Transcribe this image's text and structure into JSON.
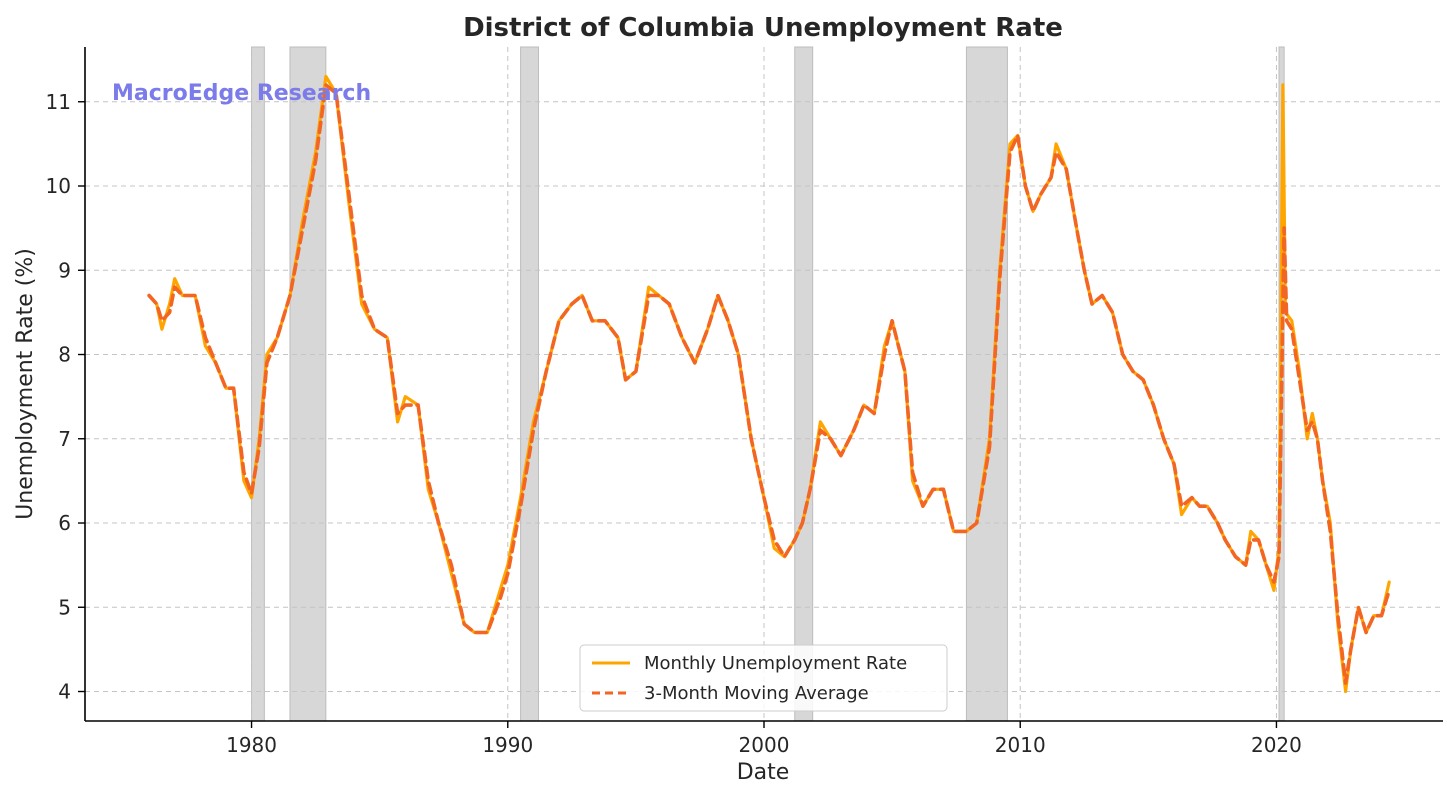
{
  "chart_data": {
    "type": "line",
    "title": "District of Columbia Unemployment Rate",
    "xlabel": "Date",
    "ylabel": "Unemployment Rate (%)",
    "watermark": "MacroEdge Research",
    "xlim": [
      1973.5,
      2026.5
    ],
    "ylim": [
      3.65,
      11.65
    ],
    "xticks": [
      1980,
      1990,
      2000,
      2010,
      2020
    ],
    "yticks": [
      4,
      5,
      6,
      7,
      8,
      9,
      10,
      11
    ],
    "grid": true,
    "legend_position": "bottom-center",
    "colors": {
      "monthly": "#ffa500",
      "moving_average": "#f26522",
      "recession": "#d7d7d7"
    },
    "recessions": [
      [
        1980.0,
        1980.5
      ],
      [
        1981.5,
        1982.9
      ],
      [
        1990.5,
        1991.2
      ],
      [
        2001.2,
        2001.9
      ],
      [
        2007.9,
        2009.5
      ],
      [
        2020.1,
        2020.3
      ]
    ],
    "series": [
      {
        "name": "Monthly Unemployment Rate",
        "style": "solid",
        "color": "#ffa500",
        "x": [
          1976.0,
          1976.3,
          1976.5,
          1976.8,
          1977.0,
          1977.3,
          1977.8,
          1978.2,
          1978.6,
          1979.0,
          1979.3,
          1979.7,
          1980.0,
          1980.3,
          1980.6,
          1981.0,
          1981.5,
          1982.0,
          1982.5,
          1982.9,
          1983.3,
          1983.8,
          1984.3,
          1984.8,
          1985.3,
          1985.7,
          1986.0,
          1986.5,
          1986.9,
          1987.3,
          1987.8,
          1988.3,
          1988.7,
          1989.2,
          1989.7,
          1990.0,
          1990.5,
          1991.0,
          1991.5,
          1992.0,
          1992.5,
          1992.9,
          1993.3,
          1993.8,
          1994.3,
          1994.6,
          1995.0,
          1995.5,
          1995.9,
          1996.3,
          1996.8,
          1997.3,
          1997.8,
          1998.2,
          1998.6,
          1999.0,
          1999.5,
          2000.0,
          2000.4,
          2000.8,
          2001.2,
          2001.5,
          2001.8,
          2002.2,
          2002.6,
          2003.0,
          2003.5,
          2003.9,
          2004.3,
          2004.7,
          2005.0,
          2005.5,
          2005.8,
          2006.2,
          2006.6,
          2007.0,
          2007.4,
          2007.9,
          2008.3,
          2008.8,
          2009.2,
          2009.6,
          2009.9,
          2010.2,
          2010.5,
          2010.8,
          2011.2,
          2011.4,
          2011.8,
          2012.2,
          2012.5,
          2012.8,
          2013.2,
          2013.6,
          2014.0,
          2014.4,
          2014.8,
          2015.2,
          2015.6,
          2016.0,
          2016.3,
          2016.7,
          2017.0,
          2017.3,
          2017.7,
          2018.0,
          2018.4,
          2018.8,
          2019.0,
          2019.3,
          2019.6,
          2019.9,
          2020.1,
          2020.25,
          2020.35,
          2020.6,
          2020.9,
          2021.2,
          2021.4,
          2021.6,
          2021.8,
          2022.1,
          2022.4,
          2022.7,
          2022.9,
          2023.2,
          2023.5,
          2023.8,
          2024.1,
          2024.4
        ],
        "values": [
          8.7,
          8.6,
          8.3,
          8.6,
          8.9,
          8.7,
          8.7,
          8.1,
          7.9,
          7.6,
          7.6,
          6.5,
          6.3,
          7.0,
          8.0,
          8.2,
          8.7,
          9.6,
          10.4,
          11.3,
          11.1,
          9.8,
          8.6,
          8.3,
          8.2,
          7.2,
          7.5,
          7.4,
          6.4,
          6.0,
          5.4,
          4.8,
          4.7,
          4.7,
          5.2,
          5.5,
          6.3,
          7.2,
          7.8,
          8.4,
          8.6,
          8.7,
          8.4,
          8.4,
          8.2,
          7.7,
          7.8,
          8.8,
          8.7,
          8.6,
          8.2,
          7.9,
          8.3,
          8.7,
          8.4,
          8.0,
          7.0,
          6.3,
          5.7,
          5.6,
          5.8,
          6.0,
          6.4,
          7.2,
          7.0,
          6.8,
          7.1,
          7.4,
          7.3,
          8.1,
          8.4,
          7.8,
          6.5,
          6.2,
          6.4,
          6.4,
          5.9,
          5.9,
          6.0,
          7.0,
          9.0,
          10.5,
          10.6,
          10.0,
          9.7,
          9.9,
          10.1,
          10.5,
          10.2,
          9.5,
          9.0,
          8.6,
          8.7,
          8.5,
          8.0,
          7.8,
          7.7,
          7.4,
          7.0,
          6.7,
          6.1,
          6.3,
          6.2,
          6.2,
          6.0,
          5.8,
          5.6,
          5.5,
          5.9,
          5.8,
          5.5,
          5.2,
          5.7,
          11.2,
          8.5,
          8.4,
          7.8,
          7.0,
          7.3,
          7.0,
          6.5,
          6.0,
          4.8,
          4.0,
          4.5,
          5.0,
          4.7,
          4.9,
          4.9,
          5.3
        ]
      },
      {
        "name": "3-Month Moving Average",
        "style": "dashed",
        "color": "#f26522",
        "x": [
          1976.0,
          1976.3,
          1976.5,
          1976.8,
          1977.0,
          1977.3,
          1977.8,
          1978.2,
          1978.6,
          1979.0,
          1979.3,
          1979.7,
          1980.0,
          1980.3,
          1980.6,
          1981.0,
          1981.5,
          1982.0,
          1982.5,
          1982.9,
          1983.3,
          1983.8,
          1984.3,
          1984.8,
          1985.3,
          1985.7,
          1986.0,
          1986.5,
          1986.9,
          1987.3,
          1987.8,
          1988.3,
          1988.7,
          1989.2,
          1989.7,
          1990.0,
          1990.5,
          1991.0,
          1991.5,
          1992.0,
          1992.5,
          1992.9,
          1993.3,
          1993.8,
          1994.3,
          1994.6,
          1995.0,
          1995.5,
          1995.9,
          1996.3,
          1996.8,
          1997.3,
          1997.8,
          1998.2,
          1998.6,
          1999.0,
          1999.5,
          2000.0,
          2000.4,
          2000.8,
          2001.2,
          2001.5,
          2001.8,
          2002.2,
          2002.6,
          2003.0,
          2003.5,
          2003.9,
          2004.3,
          2004.7,
          2005.0,
          2005.5,
          2005.8,
          2006.2,
          2006.6,
          2007.0,
          2007.4,
          2007.9,
          2008.3,
          2008.8,
          2009.2,
          2009.6,
          2009.9,
          2010.2,
          2010.5,
          2010.8,
          2011.2,
          2011.4,
          2011.8,
          2012.2,
          2012.5,
          2012.8,
          2013.2,
          2013.6,
          2014.0,
          2014.4,
          2014.8,
          2015.2,
          2015.6,
          2016.0,
          2016.3,
          2016.7,
          2017.0,
          2017.3,
          2017.7,
          2018.0,
          2018.4,
          2018.8,
          2019.0,
          2019.3,
          2019.6,
          2019.9,
          2020.1,
          2020.3,
          2020.4,
          2020.6,
          2020.9,
          2021.2,
          2021.4,
          2021.6,
          2021.8,
          2022.1,
          2022.4,
          2022.7,
          2022.9,
          2023.2,
          2023.5,
          2023.8,
          2024.1,
          2024.4
        ],
        "values": [
          8.7,
          8.6,
          8.4,
          8.5,
          8.8,
          8.7,
          8.7,
          8.2,
          7.9,
          7.6,
          7.6,
          6.6,
          6.35,
          6.9,
          7.9,
          8.2,
          8.7,
          9.5,
          10.3,
          11.2,
          11.1,
          9.9,
          8.7,
          8.3,
          8.2,
          7.3,
          7.4,
          7.4,
          6.5,
          6.0,
          5.5,
          4.8,
          4.7,
          4.7,
          5.1,
          5.4,
          6.2,
          7.1,
          7.8,
          8.4,
          8.6,
          8.7,
          8.4,
          8.4,
          8.2,
          7.7,
          7.8,
          8.7,
          8.7,
          8.6,
          8.2,
          7.9,
          8.3,
          8.7,
          8.4,
          8.0,
          7.0,
          6.3,
          5.8,
          5.6,
          5.8,
          6.0,
          6.4,
          7.1,
          7.0,
          6.8,
          7.1,
          7.4,
          7.3,
          8.0,
          8.4,
          7.8,
          6.6,
          6.2,
          6.4,
          6.4,
          5.9,
          5.9,
          6.0,
          6.9,
          8.9,
          10.4,
          10.6,
          10.0,
          9.7,
          9.9,
          10.1,
          10.4,
          10.2,
          9.5,
          9.0,
          8.6,
          8.7,
          8.5,
          8.0,
          7.8,
          7.7,
          7.4,
          7.0,
          6.7,
          6.2,
          6.3,
          6.2,
          6.2,
          6.0,
          5.8,
          5.6,
          5.5,
          5.8,
          5.8,
          5.5,
          5.3,
          5.6,
          9.5,
          8.4,
          8.3,
          7.7,
          7.1,
          7.2,
          7.0,
          6.5,
          5.9,
          4.9,
          4.1,
          4.5,
          5.0,
          4.7,
          4.9,
          4.9,
          5.2
        ]
      }
    ]
  }
}
